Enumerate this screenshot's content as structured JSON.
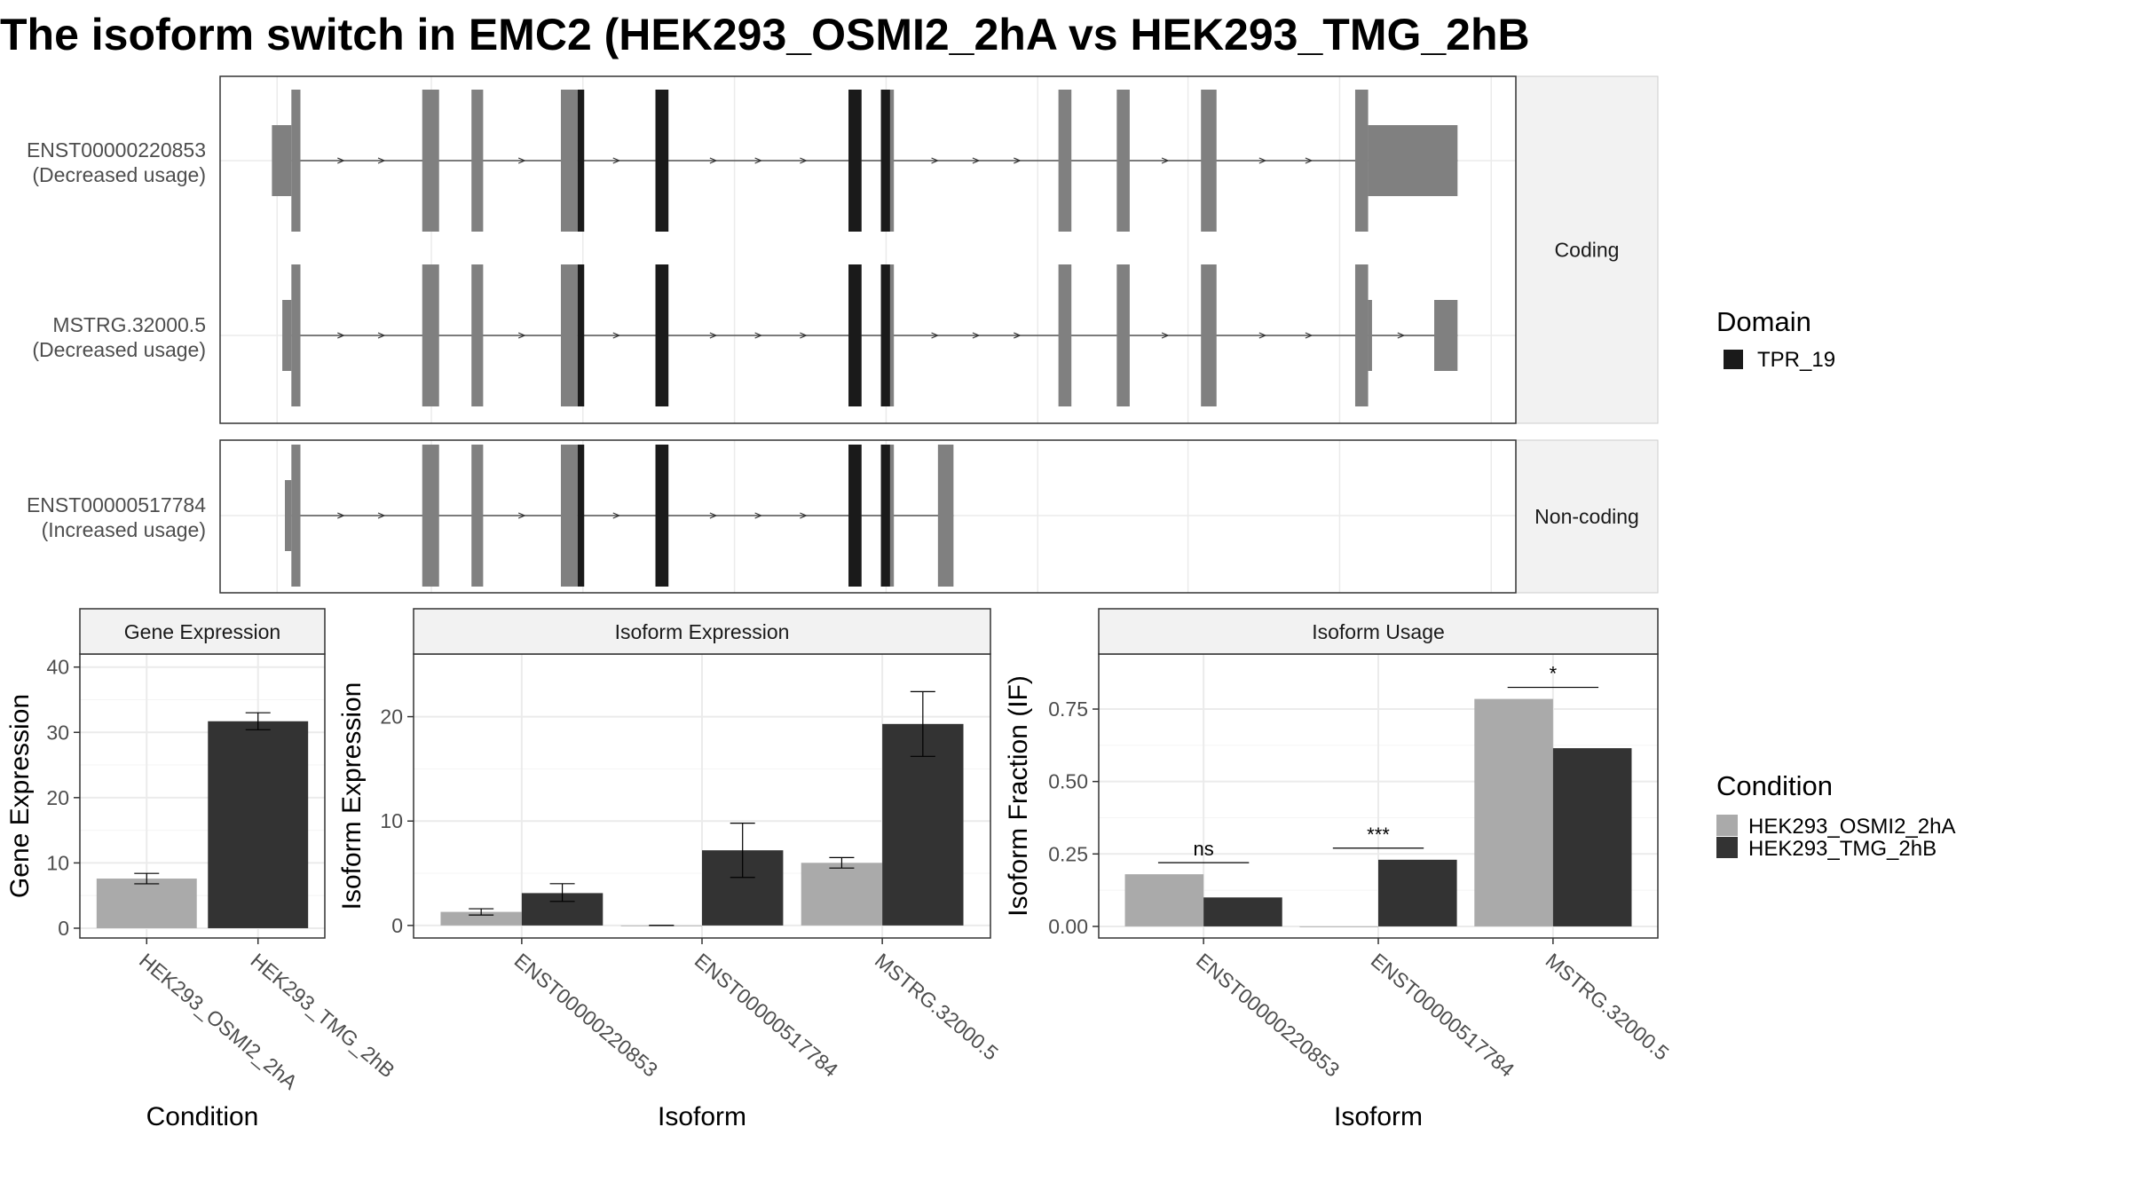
{
  "title": "The isoform switch in EMC2 (HEK293_OSMI2_2hA vs HEK293_TMG_2hB",
  "colors": {
    "condA": "#aaaaaa",
    "condB": "#333333",
    "exon": "#808080",
    "domain": "#1a1a1a",
    "grid": "#ebebeb",
    "strip": "#f2f2f2"
  },
  "structure": {
    "facets": [
      "Coding",
      "Non-coding"
    ],
    "domain_legend": {
      "title": "Domain",
      "items": [
        {
          "label": "TPR_19"
        }
      ]
    },
    "transcripts": [
      {
        "name": "ENST00000220853",
        "usage": "(Decreased usage)",
        "facet": "Coding",
        "utr_start": [
          0.04,
          0.055
        ],
        "exons": [
          [
            0.055,
            0.062
          ],
          [
            0.156,
            0.169
          ],
          [
            0.194,
            0.203
          ],
          [
            0.263,
            0.276
          ],
          [
            0.336,
            0.346
          ],
          [
            0.485,
            0.495
          ],
          [
            0.51,
            0.52
          ],
          [
            0.647,
            0.657
          ],
          [
            0.692,
            0.702
          ],
          [
            0.757,
            0.769
          ],
          [
            0.876,
            0.886
          ]
        ],
        "domain_exons": [
          [
            0.276,
            0.281
          ],
          [
            0.336,
            0.346
          ],
          [
            0.485,
            0.495
          ],
          [
            0.51,
            0.517
          ]
        ],
        "utr_end": [
          0.886,
          0.955
        ]
      },
      {
        "name": "MSTRG.32000.5",
        "usage": "(Decreased usage)",
        "facet": "Coding",
        "utr_start": [
          0.048,
          0.055
        ],
        "exons": [
          [
            0.055,
            0.062
          ],
          [
            0.156,
            0.169
          ],
          [
            0.194,
            0.203
          ],
          [
            0.263,
            0.276
          ],
          [
            0.336,
            0.346
          ],
          [
            0.485,
            0.495
          ],
          [
            0.51,
            0.52
          ],
          [
            0.647,
            0.657
          ],
          [
            0.692,
            0.702
          ],
          [
            0.757,
            0.769
          ],
          [
            0.876,
            0.886
          ]
        ],
        "domain_exons": [
          [
            0.276,
            0.281
          ],
          [
            0.336,
            0.346
          ],
          [
            0.485,
            0.495
          ],
          [
            0.51,
            0.517
          ]
        ],
        "utr_mid": [
          0.886,
          0.889
        ],
        "utr_end": [
          0.937,
          0.955
        ]
      },
      {
        "name": "ENST00000517784",
        "usage": "(Increased usage)",
        "facet": "Non-coding",
        "utr_start": [
          0.05,
          0.055
        ],
        "exons": [
          [
            0.055,
            0.062
          ],
          [
            0.156,
            0.169
          ],
          [
            0.194,
            0.203
          ],
          [
            0.263,
            0.276
          ],
          [
            0.336,
            0.346
          ],
          [
            0.485,
            0.495
          ],
          [
            0.51,
            0.52
          ],
          [
            0.554,
            0.566
          ]
        ],
        "domain_exons": [
          [
            0.276,
            0.281
          ],
          [
            0.336,
            0.346
          ],
          [
            0.485,
            0.495
          ],
          [
            0.51,
            0.517
          ]
        ]
      }
    ]
  },
  "chart_data": [
    {
      "type": "bar",
      "strip": "Gene Expression",
      "xlabel": "Condition",
      "ylabel": "Gene Expression",
      "ylim": [
        -1.5,
        42
      ],
      "yticks": [
        0,
        10,
        20,
        30,
        40
      ],
      "categories": [
        "HEK293_OSMI2_2hA",
        "HEK293_TMG_2hB"
      ],
      "series": [
        {
          "name": "HEK293_OSMI2_2hA",
          "values": [
            7.6,
            null
          ],
          "err": [
            [
              6.8,
              8.4
            ],
            null
          ]
        },
        {
          "name": "HEK293_TMG_2hB",
          "values": [
            null,
            31.7
          ],
          "err": [
            null,
            [
              30.4,
              33.0
            ]
          ]
        }
      ]
    },
    {
      "type": "bar",
      "strip": "Isoform Expression",
      "xlabel": "Isoform",
      "ylabel": "Isoform Expression",
      "ylim": [
        -1.2,
        26
      ],
      "yticks": [
        0,
        10,
        20
      ],
      "categories": [
        "ENST00000220853",
        "ENST00000517784",
        "MSTRG.32000.5"
      ],
      "series": [
        {
          "name": "HEK293_OSMI2_2hA",
          "values": [
            1.3,
            0.0,
            6.0
          ],
          "err": [
            [
              1.0,
              1.6
            ],
            [
              0.0,
              0.0
            ],
            [
              5.5,
              6.5
            ]
          ]
        },
        {
          "name": "HEK293_TMG_2hB",
          "values": [
            3.1,
            7.2,
            19.3
          ],
          "err": [
            [
              2.3,
              4.0
            ],
            [
              4.6,
              9.8
            ],
            [
              16.2,
              22.4
            ]
          ]
        }
      ]
    },
    {
      "type": "bar",
      "strip": "Isoform Usage",
      "xlabel": "Isoform",
      "ylabel": "Isoform Fraction (IF)",
      "ylim": [
        -0.04,
        0.94
      ],
      "yticks": [
        0.0,
        0.25,
        0.5,
        0.75
      ],
      "ytick_labels": [
        "0.00",
        "0.25",
        "0.50",
        "0.75"
      ],
      "categories": [
        "ENST00000220853",
        "ENST00000517784",
        "MSTRG.32000.5"
      ],
      "series": [
        {
          "name": "HEK293_OSMI2_2hA",
          "values": [
            0.18,
            0.0,
            0.785
          ]
        },
        {
          "name": "HEK293_TMG_2hB",
          "values": [
            0.1,
            0.23,
            0.615
          ]
        }
      ],
      "significance": [
        {
          "label": "ns",
          "level": 0.22
        },
        {
          "label": "***",
          "level": 0.27
        },
        {
          "label": "*",
          "level": 0.825
        }
      ]
    }
  ],
  "condition_legend": {
    "title": "Condition",
    "items": [
      {
        "label": "HEK293_OSMI2_2hA"
      },
      {
        "label": "HEK293_TMG_2hB"
      }
    ]
  }
}
